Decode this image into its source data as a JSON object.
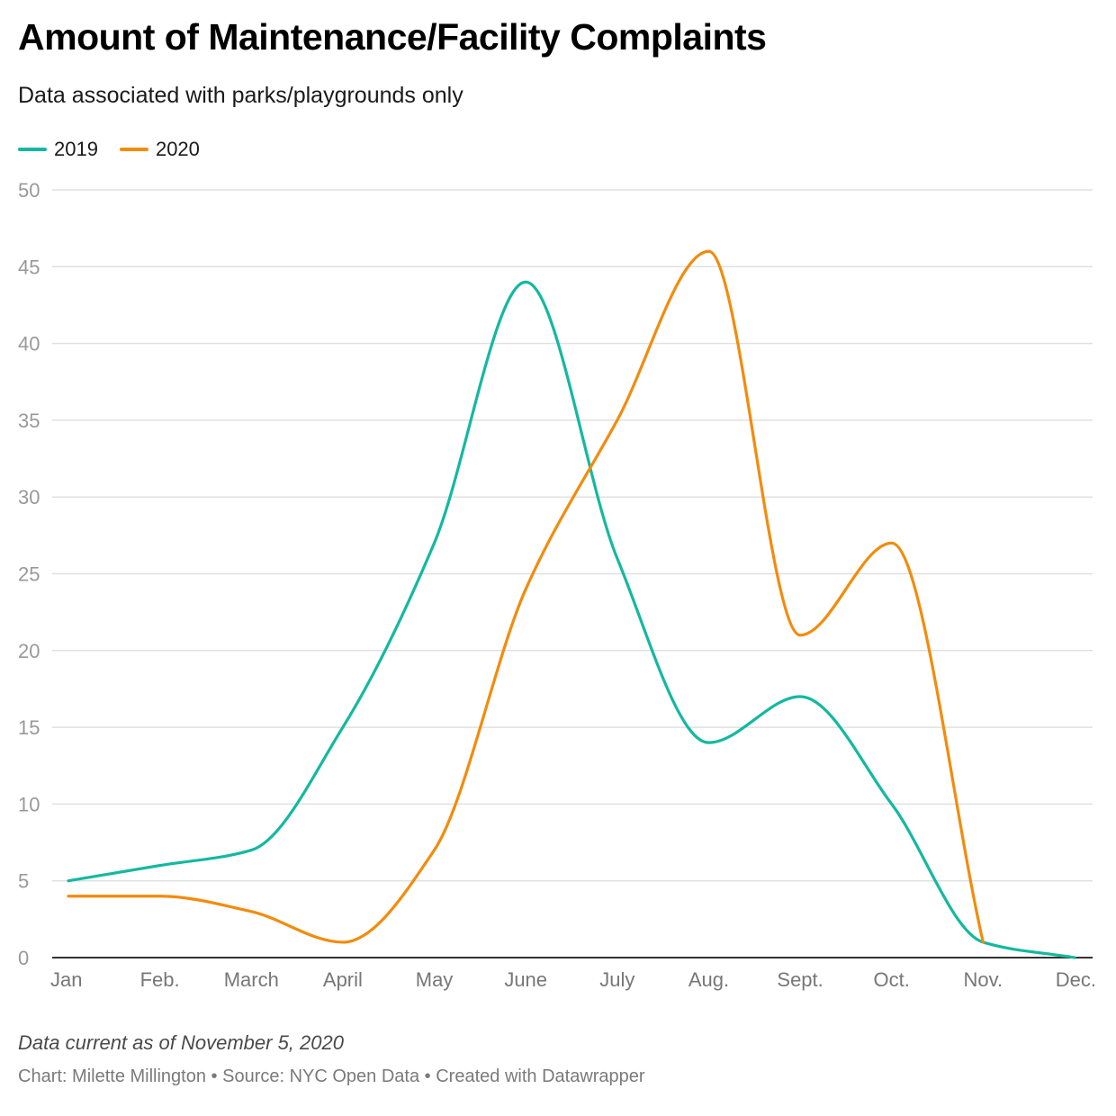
{
  "header": {
    "title": "Amount of Maintenance/Facility Complaints",
    "subtitle": "Data associated with parks/playgrounds only"
  },
  "footer": {
    "note": "Data current as of November 5, 2020",
    "credits": {
      "chart_label": "Chart: ",
      "author": "Milette Millington",
      "separator": " • ",
      "source_label": "Source: ",
      "source": "NYC Open Data",
      "tool": "Created with Datawrapper"
    }
  },
  "colors": {
    "s2019": "#14b8a0",
    "s2020": "#f38b0c",
    "grid": "#e0e0e0",
    "axis": "#333333",
    "tick": "#999999",
    "xtick": "#777777"
  },
  "chart_data": {
    "type": "line",
    "categories": [
      "Jan",
      "Feb.",
      "March",
      "April",
      "May",
      "June",
      "July",
      "Aug.",
      "Sept.",
      "Oct.",
      "Nov.",
      "Dec."
    ],
    "series": [
      {
        "name": "2019",
        "color": "#14b8a0",
        "values": [
          5,
          6,
          7,
          15,
          27,
          44,
          26,
          14,
          17,
          10,
          1,
          0
        ]
      },
      {
        "name": "2020",
        "color": "#f38b0c",
        "values": [
          4,
          4,
          3,
          1,
          7,
          24,
          35,
          46,
          21,
          27,
          1,
          null
        ]
      }
    ],
    "ylim": [
      0,
      50
    ],
    "yticks": [
      0,
      5,
      10,
      15,
      20,
      25,
      30,
      35,
      40,
      45,
      50
    ],
    "grid": true,
    "legend": "top-left",
    "smooth": true
  }
}
